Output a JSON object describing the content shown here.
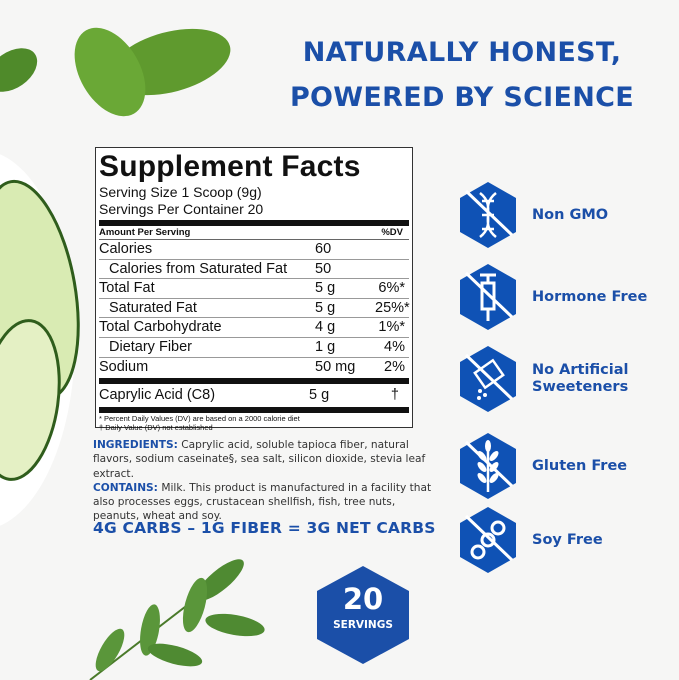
{
  "headline": {
    "line1": "NATURALLY HONEST,",
    "line2": "POWERED BY SCIENCE"
  },
  "facts": {
    "title": "Supplement Facts",
    "serving_size": "Serving Size 1 Scoop (9g)",
    "servings_per_container": "Servings Per Container 20",
    "amount_header": "Amount Per Serving",
    "dv_header": "%DV",
    "rows": [
      {
        "name": "Calories",
        "amount": "60",
        "dv": ""
      },
      {
        "name": "Calories from Saturated Fat",
        "amount": "50",
        "dv": ""
      },
      {
        "name": "Total Fat",
        "amount": "5 g",
        "dv": "6%*"
      },
      {
        "name": "Saturated Fat",
        "amount": "5 g",
        "dv": "25%*"
      },
      {
        "name": "Total Carbohydrate",
        "amount": "4 g",
        "dv": "1%*"
      },
      {
        "name": "Dietary Fiber",
        "amount": "1 g",
        "dv": "4%"
      },
      {
        "name": "Sodium",
        "amount": "50 mg",
        "dv": "2%"
      }
    ],
    "extra_row": {
      "name": "Caprylic Acid (C8)",
      "amount": "5 g",
      "dv": "†"
    },
    "footnote1": "* Percent Daily Values (DV) are based on a 2000 calorie diet",
    "footnote2": "† Daily Value (DV) not established"
  },
  "ingredients": {
    "label": "INGREDIENTS:",
    "text": "Caprylic acid, soluble tapioca fiber, natural flavors, sodium caseinate§, sea salt, silicon dioxide, stevia leaf extract.",
    "contains_label": "CONTAINS:",
    "contains_text": "Milk. This product is manufactured in a facility that also processes eggs, crustacean shellfish, fish, tree nuts, peanuts, wheat and soy."
  },
  "net_carbs": "4G CARBS – 1G FIBER = 3G NET CARBS",
  "badge": {
    "number": "20",
    "label": "SERVINGS"
  },
  "claims": [
    {
      "label": "Non GMO",
      "icon": "dna-crossed-icon"
    },
    {
      "label": "Hormone Free",
      "icon": "syringe-crossed-icon"
    },
    {
      "label": "No Artificial Sweeteners",
      "icon": "sweetener-packet-crossed-icon"
    },
    {
      "label": "Gluten Free",
      "icon": "wheat-crossed-icon"
    },
    {
      "label": "Soy Free",
      "icon": "soybean-crossed-icon"
    }
  ],
  "colors": {
    "brand_blue": "#1b4fa8",
    "icon_blue": "#0f52b5",
    "leaf_green": "#5a9a3a"
  }
}
